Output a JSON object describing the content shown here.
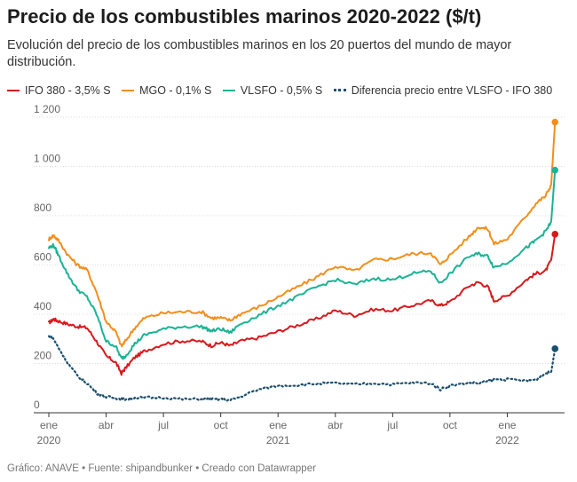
{
  "header": {
    "title": "Precio de los combustibles marinos 2020-2022 ($/t)",
    "subtitle": "Evolución del precio de los combustibles marinos en los 20 puertos del mundo de mayor distribución."
  },
  "footer": {
    "text": "Gráfico: ANAVE • Fuente: shipandbunker • Creado con Datawrapper"
  },
  "chart_data": {
    "type": "line",
    "title": "Precio de los combustibles marinos 2020-2022 ($/t)",
    "subtitle": "Evolución del precio de los combustibles marinos en los 20 puertos del mundo de mayor distribución.",
    "xlabel": "",
    "ylabel": "",
    "ylim": [
      0,
      1200
    ],
    "yticks": [
      {
        "value": 0,
        "label": "0"
      },
      {
        "value": 200,
        "label": "200"
      },
      {
        "value": 400,
        "label": "400"
      },
      {
        "value": 600,
        "label": "600"
      },
      {
        "value": 800,
        "label": "800"
      },
      {
        "value": 1000,
        "label": "1 000"
      },
      {
        "value": 1200,
        "label": "1 200"
      }
    ],
    "x_range_months": [
      0,
      27
    ],
    "x_unit": "months since Jan 2020",
    "xticks": [
      {
        "value": 0,
        "label": "ene",
        "sub": "2020"
      },
      {
        "value": 3,
        "label": "abr",
        "sub": ""
      },
      {
        "value": 6,
        "label": "jul",
        "sub": ""
      },
      {
        "value": 9,
        "label": "oct",
        "sub": ""
      },
      {
        "value": 12,
        "label": "ene",
        "sub": "2021"
      },
      {
        "value": 15,
        "label": "abr",
        "sub": ""
      },
      {
        "value": 18,
        "label": "jul",
        "sub": ""
      },
      {
        "value": 21,
        "label": "oct",
        "sub": ""
      },
      {
        "value": 24,
        "label": "ene",
        "sub": "2022"
      }
    ],
    "grid": true,
    "legend_position": "top",
    "x": [
      0,
      0.25,
      0.5,
      1,
      1.5,
      2,
      2.5,
      3,
      3.5,
      3.8,
      4,
      4.5,
      5,
      6,
      7,
      8,
      8.5,
      9,
      9.5,
      10,
      11,
      12,
      13,
      14,
      15,
      16,
      17,
      18,
      19,
      20,
      20.5,
      21,
      22,
      22.5,
      23,
      23.3,
      24,
      25,
      25.5,
      26,
      26.3,
      26.5
    ],
    "series": [
      {
        "name": "IFO 380 - 3,5% S",
        "color": "#d7191c",
        "style": "solid",
        "values": [
          365,
          380,
          372,
          360,
          350,
          345,
          290,
          230,
          205,
          160,
          180,
          225,
          250,
          280,
          292,
          290,
          272,
          285,
          272,
          290,
          305,
          330,
          355,
          380,
          415,
          395,
          420,
          415,
          435,
          455,
          435,
          450,
          515,
          530,
          510,
          455,
          475,
          540,
          565,
          575,
          620,
          725
        ]
      },
      {
        "name": "MGO - 0,1% S",
        "color": "#f28e1c",
        "style": "solid",
        "values": [
          705,
          720,
          700,
          640,
          600,
          580,
          490,
          370,
          330,
          270,
          290,
          345,
          385,
          405,
          410,
          410,
          385,
          385,
          375,
          400,
          430,
          470,
          510,
          550,
          595,
          575,
          620,
          625,
          645,
          650,
          600,
          640,
          715,
          755,
          745,
          685,
          705,
          800,
          850,
          880,
          925,
          1180
        ]
      },
      {
        "name": "VLSFO - 0,5% S",
        "color": "#1ab394",
        "style": "solid",
        "values": [
          670,
          680,
          640,
          560,
          500,
          470,
          400,
          290,
          270,
          220,
          230,
          280,
          315,
          340,
          350,
          350,
          332,
          340,
          325,
          360,
          395,
          435,
          470,
          510,
          540,
          520,
          545,
          540,
          565,
          575,
          525,
          565,
          635,
          645,
          635,
          590,
          610,
          670,
          700,
          735,
          775,
          985
        ]
      },
      {
        "name": "Diferencia precio entre VLSFO - IFO 380",
        "color": "#1a4f6e",
        "style": "dotted",
        "values": [
          310,
          300,
          265,
          200,
          150,
          120,
          80,
          65,
          60,
          55,
          55,
          60,
          62,
          62,
          55,
          55,
          55,
          55,
          50,
          65,
          95,
          110,
          112,
          118,
          120,
          115,
          120,
          115,
          122,
          120,
          95,
          110,
          122,
          120,
          130,
          135,
          135,
          130,
          135,
          160,
          165,
          260
        ]
      }
    ]
  }
}
